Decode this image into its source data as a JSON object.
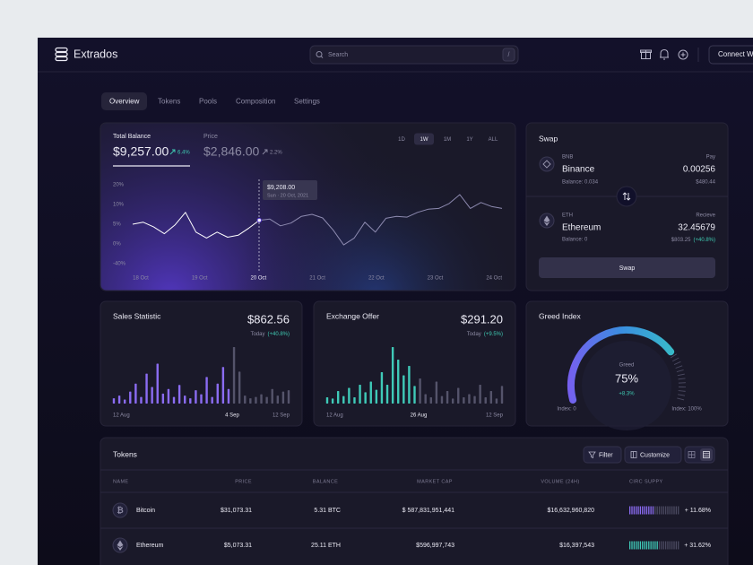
{
  "header": {
    "brand": "Extrados",
    "search_placeholder": "Search",
    "search_shortcut": "/",
    "connect_button": "Connect W"
  },
  "tabs": [
    "Overview",
    "Tokens",
    "Pools",
    "Composition",
    "Settings"
  ],
  "balance_card": {
    "total_balance_label": "Total Balance",
    "total_balance": "$9,257.00",
    "total_balance_change": "6.4%",
    "price_label": "Price",
    "price": "$2,846.00",
    "price_change": "2.2%",
    "ranges": [
      "1D",
      "1W",
      "1M",
      "1Y",
      "ALL"
    ],
    "chart": {
      "type": "line",
      "yticks": [
        {
          "value": 20,
          "label": "20%"
        },
        {
          "value": 10,
          "label": "10%"
        },
        {
          "value": 5,
          "label": "5%"
        },
        {
          "value": 0,
          "label": "0%"
        },
        {
          "value": -40,
          "label": "-40%"
        }
      ],
      "x_labels": [
        "18 Oct",
        "19 Oct",
        "20 Oct",
        "21 Oct",
        "22 Oct",
        "23 Oct",
        "24 Oct"
      ],
      "values": [
        5.0,
        5.5,
        4.3,
        2.6,
        4.8,
        8.0,
        3.0,
        1.5,
        3.0,
        1.7,
        2.2,
        4.0,
        6.0,
        6.3,
        4.6,
        5.3,
        7.0,
        7.5,
        6.6,
        3.5,
        -2,
        1.5,
        5.5,
        3.0,
        6.5,
        7.0,
        6.8,
        8.0,
        8.8,
        9.0,
        10.5,
        15,
        9.0,
        11.0,
        9.5,
        9.0
      ],
      "tooltip_value": "$9,208.00",
      "tooltip_date": "Sun · 20 Oct, 2021"
    }
  },
  "swap": {
    "title": "Swap",
    "from": {
      "symbol": "BNB",
      "name": "Binance",
      "balance": "Balance: 0.034",
      "label": "Pay",
      "amount": "0.00256",
      "usd": "$480.44"
    },
    "to": {
      "symbol": "ETH",
      "name": "Ethereum",
      "balance": "Balance: 0",
      "label": "Recieve",
      "amount": "32.45679",
      "usd": "$803.25",
      "change": "(+40.8%)"
    },
    "button": "Swap"
  },
  "sales": {
    "type": "bar",
    "title": "Sales Statistic",
    "value": "$862.56",
    "period": "Today",
    "change": "(+40.8%)",
    "color": "#8b6cf2",
    "x_labels": [
      "12 Aug",
      "4 Sep",
      "12 Sep"
    ],
    "values": [
      8,
      12,
      6,
      18,
      30,
      10,
      45,
      25,
      60,
      15,
      22,
      10,
      28,
      12,
      8,
      20,
      14,
      40,
      10,
      30,
      55,
      22,
      85,
      48,
      12,
      8,
      10,
      14,
      10,
      22,
      12,
      18,
      20
    ]
  },
  "exchange": {
    "type": "bar",
    "title": "Exchange Offer",
    "value": "$291.20",
    "period": "Today",
    "change": "(+9.5%)",
    "color": "#3fcab8",
    "x_labels": [
      "12 Aug",
      "26 Aug",
      "12 Sep"
    ],
    "values": [
      10,
      8,
      20,
      12,
      25,
      10,
      30,
      18,
      35,
      22,
      50,
      30,
      90,
      70,
      45,
      60,
      28,
      40,
      15,
      10,
      35,
      12,
      20,
      8,
      25,
      10,
      15,
      12,
      30,
      10,
      20,
      8,
      28
    ]
  },
  "greed": {
    "type": "gauge",
    "title": "Greed Index",
    "label": "Greed",
    "value": 75,
    "value_label": "75%",
    "change": "+8.3%",
    "min_label": "Index: 0",
    "max_label": "Index: 100%"
  },
  "tokens": {
    "title": "Tokens",
    "filter": "Filter",
    "customize": "Customize",
    "columns": [
      "NAME",
      "PRICE",
      "BALANCE",
      "MARKET CAP",
      "VOLUME (24H)",
      "CIRC SUPPY"
    ],
    "rows": [
      {
        "name": "Bitcoin",
        "price": "$31,073.31",
        "balance": "5.31 BTC",
        "market_cap": "$ 587,831,951,441",
        "volume": "$16,632,960,820",
        "supply": 50,
        "supply_change": "+ 11.68%",
        "color": "#8b6cf2"
      },
      {
        "name": "Ethereum",
        "price": "$5,073.31",
        "balance": "25.11 ETH",
        "market_cap": "$596,997,743",
        "volume": "$16,397,543",
        "supply": 55,
        "supply_change": "+ 31.62%",
        "color": "#3fcab8"
      }
    ]
  }
}
